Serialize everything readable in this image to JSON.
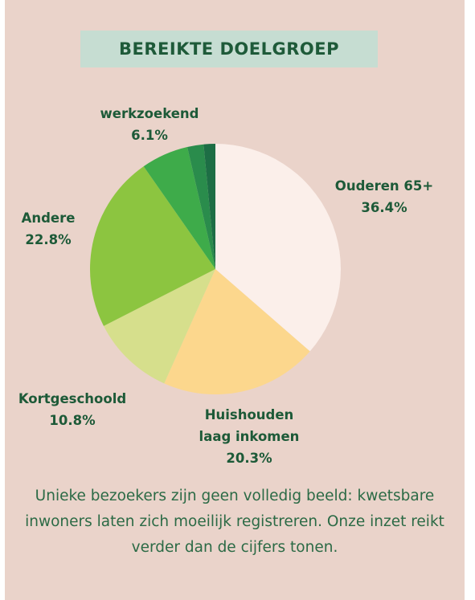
{
  "chart_data": {
    "type": "pie",
    "title": "BEREIKTE DOELGROEP",
    "categories": [
      "Ouderen 65+",
      "Huishouden laag inkomen",
      "Kortgeschoold",
      "Andere",
      "werkzoekend",
      null,
      null
    ],
    "values": [
      36.4,
      20.3,
      10.8,
      22.8,
      6.1,
      2.1,
      1.5
    ],
    "value_labels": [
      "36.4%",
      "20.3%",
      "10.8%",
      "22.8%",
      "6.1%",
      null,
      null
    ],
    "colors": [
      "#fbefea",
      "#fcd78d",
      "#d6df8c",
      "#8cc540",
      "#3eab4a",
      "#2a8c4c",
      "#1d6e45"
    ],
    "caption": "Unieke bezoekers zijn geen volledig beeld: kwetsbare inwoners laten zich moeilijk registreren. Onze inzet reikt verder dan de cijfers tonen."
  }
}
